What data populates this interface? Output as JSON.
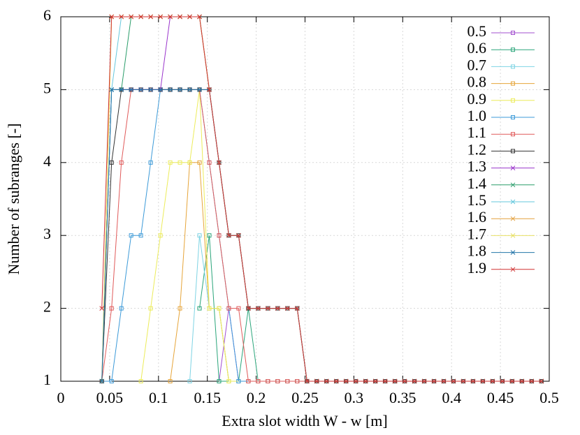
{
  "chart_data": {
    "type": "line",
    "xlabel": "Extra slot width W - w [m]",
    "ylabel": "Number of subranges [-]",
    "xlim": [
      0,
      0.5
    ],
    "ylim": [
      1,
      6
    ],
    "xticks": [
      0,
      0.05,
      0.1,
      0.15,
      0.2,
      0.25,
      0.3,
      0.35,
      0.4,
      0.45,
      0.5
    ],
    "yticks": [
      1,
      2,
      3,
      4,
      5,
      6
    ],
    "grid": true,
    "legend": "top-right",
    "x": [
      0.042,
      0.052,
      0.062,
      0.072,
      0.082,
      0.092,
      0.102,
      0.112,
      0.122,
      0.132,
      0.142,
      0.152,
      0.162,
      0.172,
      0.182,
      0.192,
      0.202,
      0.212,
      0.222,
      0.232,
      0.242,
      0.252,
      0.262,
      0.272,
      0.282,
      0.292,
      0.302,
      0.312,
      0.322,
      0.332,
      0.342,
      0.352,
      0.362,
      0.372,
      0.382,
      0.392,
      0.402,
      0.412,
      0.422,
      0.432,
      0.442,
      0.452,
      0.462,
      0.472,
      0.482,
      0.492
    ],
    "series": [
      {
        "name": "0.5",
        "color": "#a24fcf",
        "marker": "square",
        "values": [
          null,
          null,
          null,
          null,
          null,
          null,
          null,
          null,
          null,
          null,
          null,
          null,
          1,
          2,
          1,
          1,
          1,
          1,
          1,
          1,
          1,
          1,
          1,
          1,
          1,
          1,
          1,
          1,
          1,
          1,
          1,
          1,
          1,
          1,
          1,
          1,
          1,
          1,
          1,
          1,
          1,
          1,
          1,
          1,
          1,
          1
        ]
      },
      {
        "name": "0.6",
        "color": "#2aa57a",
        "marker": "square",
        "values": [
          null,
          null,
          null,
          null,
          null,
          null,
          null,
          null,
          null,
          null,
          2,
          3,
          1,
          1,
          1,
          2,
          1,
          1,
          1,
          1,
          1,
          1,
          1,
          1,
          1,
          1,
          1,
          1,
          1,
          1,
          1,
          1,
          1,
          1,
          1,
          1,
          1,
          1,
          1,
          1,
          1,
          1,
          1,
          1,
          1,
          1
        ]
      },
      {
        "name": "0.7",
        "color": "#7fd4e4",
        "marker": "square",
        "values": [
          null,
          null,
          null,
          null,
          null,
          null,
          null,
          null,
          null,
          1,
          3,
          2,
          2,
          1,
          1,
          1,
          1,
          1,
          1,
          1,
          1,
          1,
          1,
          1,
          1,
          1,
          1,
          1,
          1,
          1,
          1,
          1,
          1,
          1,
          1,
          1,
          1,
          1,
          1,
          1,
          1,
          1,
          1,
          1,
          1,
          1
        ]
      },
      {
        "name": "0.8",
        "color": "#e6a53a",
        "marker": "square",
        "values": [
          null,
          null,
          null,
          null,
          null,
          null,
          null,
          1,
          2,
          4,
          4,
          2,
          2,
          1,
          1,
          1,
          1,
          1,
          1,
          1,
          1,
          1,
          1,
          1,
          1,
          1,
          1,
          1,
          1,
          1,
          1,
          1,
          1,
          1,
          1,
          1,
          1,
          1,
          1,
          1,
          1,
          1,
          1,
          1,
          1,
          1
        ]
      },
      {
        "name": "0.9",
        "color": "#ecec5a",
        "marker": "square",
        "values": [
          null,
          null,
          null,
          null,
          1,
          2,
          3,
          4,
          4,
          4,
          5,
          2,
          2,
          1,
          1,
          1,
          1,
          1,
          1,
          1,
          1,
          1,
          1,
          1,
          1,
          1,
          1,
          1,
          1,
          1,
          1,
          1,
          1,
          1,
          1,
          1,
          1,
          1,
          1,
          1,
          1,
          1,
          1,
          1,
          1,
          1
        ]
      },
      {
        "name": "1.0",
        "color": "#3c9ad8",
        "marker": "square",
        "values": [
          1,
          1,
          2,
          3,
          3,
          4,
          5,
          5,
          5,
          5,
          5,
          4,
          3,
          2,
          1,
          1,
          1,
          1,
          1,
          1,
          1,
          1,
          1,
          1,
          1,
          1,
          1,
          1,
          1,
          1,
          1,
          1,
          1,
          1,
          1,
          1,
          1,
          1,
          1,
          1,
          1,
          1,
          1,
          1,
          1,
          1
        ]
      },
      {
        "name": "1.1",
        "color": "#e05a5a",
        "marker": "square",
        "values": [
          1,
          2,
          4,
          5,
          5,
          5,
          5,
          5,
          5,
          5,
          5,
          4,
          3,
          2,
          2,
          1,
          1,
          1,
          1,
          1,
          1,
          1,
          1,
          1,
          1,
          1,
          1,
          1,
          1,
          1,
          1,
          1,
          1,
          1,
          1,
          1,
          1,
          1,
          1,
          1,
          1,
          1,
          1,
          1,
          1,
          1
        ]
      },
      {
        "name": "1.2",
        "color": "#333333",
        "marker": "square",
        "values": [
          1,
          4,
          5,
          5,
          5,
          5,
          5,
          5,
          5,
          5,
          5,
          5,
          4,
          3,
          3,
          2,
          2,
          2,
          2,
          2,
          2,
          1,
          1,
          1,
          1,
          1,
          1,
          1,
          1,
          1,
          1,
          1,
          1,
          1,
          1,
          1,
          1,
          1,
          1,
          1,
          1,
          1,
          1,
          1,
          1,
          1
        ]
      },
      {
        "name": "1.3",
        "color": "#9a35cc",
        "marker": "x",
        "values": [
          1,
          5,
          5,
          5,
          5,
          5,
          5,
          6,
          6,
          6,
          6,
          5,
          4,
          3,
          3,
          2,
          2,
          2,
          2,
          2,
          2,
          1,
          1,
          1,
          1,
          1,
          1,
          1,
          1,
          1,
          1,
          1,
          1,
          1,
          1,
          1,
          1,
          1,
          1,
          1,
          1,
          1,
          1,
          1,
          1,
          1
        ]
      },
      {
        "name": "1.4",
        "color": "#2a9d6a",
        "marker": "x",
        "values": [
          1,
          5,
          5,
          6,
          6,
          6,
          6,
          6,
          6,
          6,
          6,
          5,
          4,
          3,
          3,
          2,
          2,
          2,
          2,
          2,
          2,
          1,
          1,
          1,
          1,
          1,
          1,
          1,
          1,
          1,
          1,
          1,
          1,
          1,
          1,
          1,
          1,
          1,
          1,
          1,
          1,
          1,
          1,
          1,
          1,
          1
        ]
      },
      {
        "name": "1.5",
        "color": "#66c8dd",
        "marker": "x",
        "values": [
          1,
          5,
          6,
          6,
          6,
          6,
          6,
          6,
          6,
          6,
          6,
          5,
          4,
          3,
          3,
          2,
          2,
          2,
          2,
          2,
          2,
          1,
          1,
          1,
          1,
          1,
          1,
          1,
          1,
          1,
          1,
          1,
          1,
          1,
          1,
          1,
          1,
          1,
          1,
          1,
          1,
          1,
          1,
          1,
          1,
          1
        ]
      },
      {
        "name": "1.6",
        "color": "#e3a03c",
        "marker": "x",
        "values": [
          1,
          6,
          6,
          6,
          6,
          6,
          6,
          6,
          6,
          6,
          6,
          5,
          4,
          3,
          3,
          2,
          2,
          2,
          2,
          2,
          2,
          1,
          1,
          1,
          1,
          1,
          1,
          1,
          1,
          1,
          1,
          1,
          1,
          1,
          1,
          1,
          1,
          1,
          1,
          1,
          1,
          1,
          1,
          1,
          1,
          1
        ]
      },
      {
        "name": "1.7",
        "color": "#e8e064",
        "marker": "x",
        "values": [
          1,
          6,
          6,
          6,
          6,
          6,
          6,
          6,
          6,
          6,
          6,
          5,
          4,
          3,
          3,
          2,
          2,
          2,
          2,
          2,
          2,
          1,
          1,
          1,
          1,
          1,
          1,
          1,
          1,
          1,
          1,
          1,
          1,
          1,
          1,
          1,
          1,
          1,
          1,
          1,
          1,
          1,
          1,
          1,
          1,
          1
        ]
      },
      {
        "name": "1.8",
        "color": "#2274a8",
        "marker": "x",
        "values": [
          1,
          5,
          5,
          5,
          5,
          5,
          5,
          5,
          5,
          5,
          5,
          5,
          4,
          3,
          3,
          2,
          2,
          2,
          2,
          2,
          2,
          1,
          1,
          1,
          1,
          1,
          1,
          1,
          1,
          1,
          1,
          1,
          1,
          1,
          1,
          1,
          1,
          1,
          1,
          1,
          1,
          1,
          1,
          1,
          1,
          1
        ]
      },
      {
        "name": "1.9",
        "color": "#d03232",
        "marker": "x",
        "values": [
          2,
          6,
          6,
          6,
          6,
          6,
          6,
          6,
          6,
          6,
          6,
          5,
          4,
          3,
          3,
          2,
          2,
          2,
          2,
          2,
          2,
          1,
          1,
          1,
          1,
          1,
          1,
          1,
          1,
          1,
          1,
          1,
          1,
          1,
          1,
          1,
          1,
          1,
          1,
          1,
          1,
          1,
          1,
          1,
          1,
          1
        ]
      }
    ]
  }
}
